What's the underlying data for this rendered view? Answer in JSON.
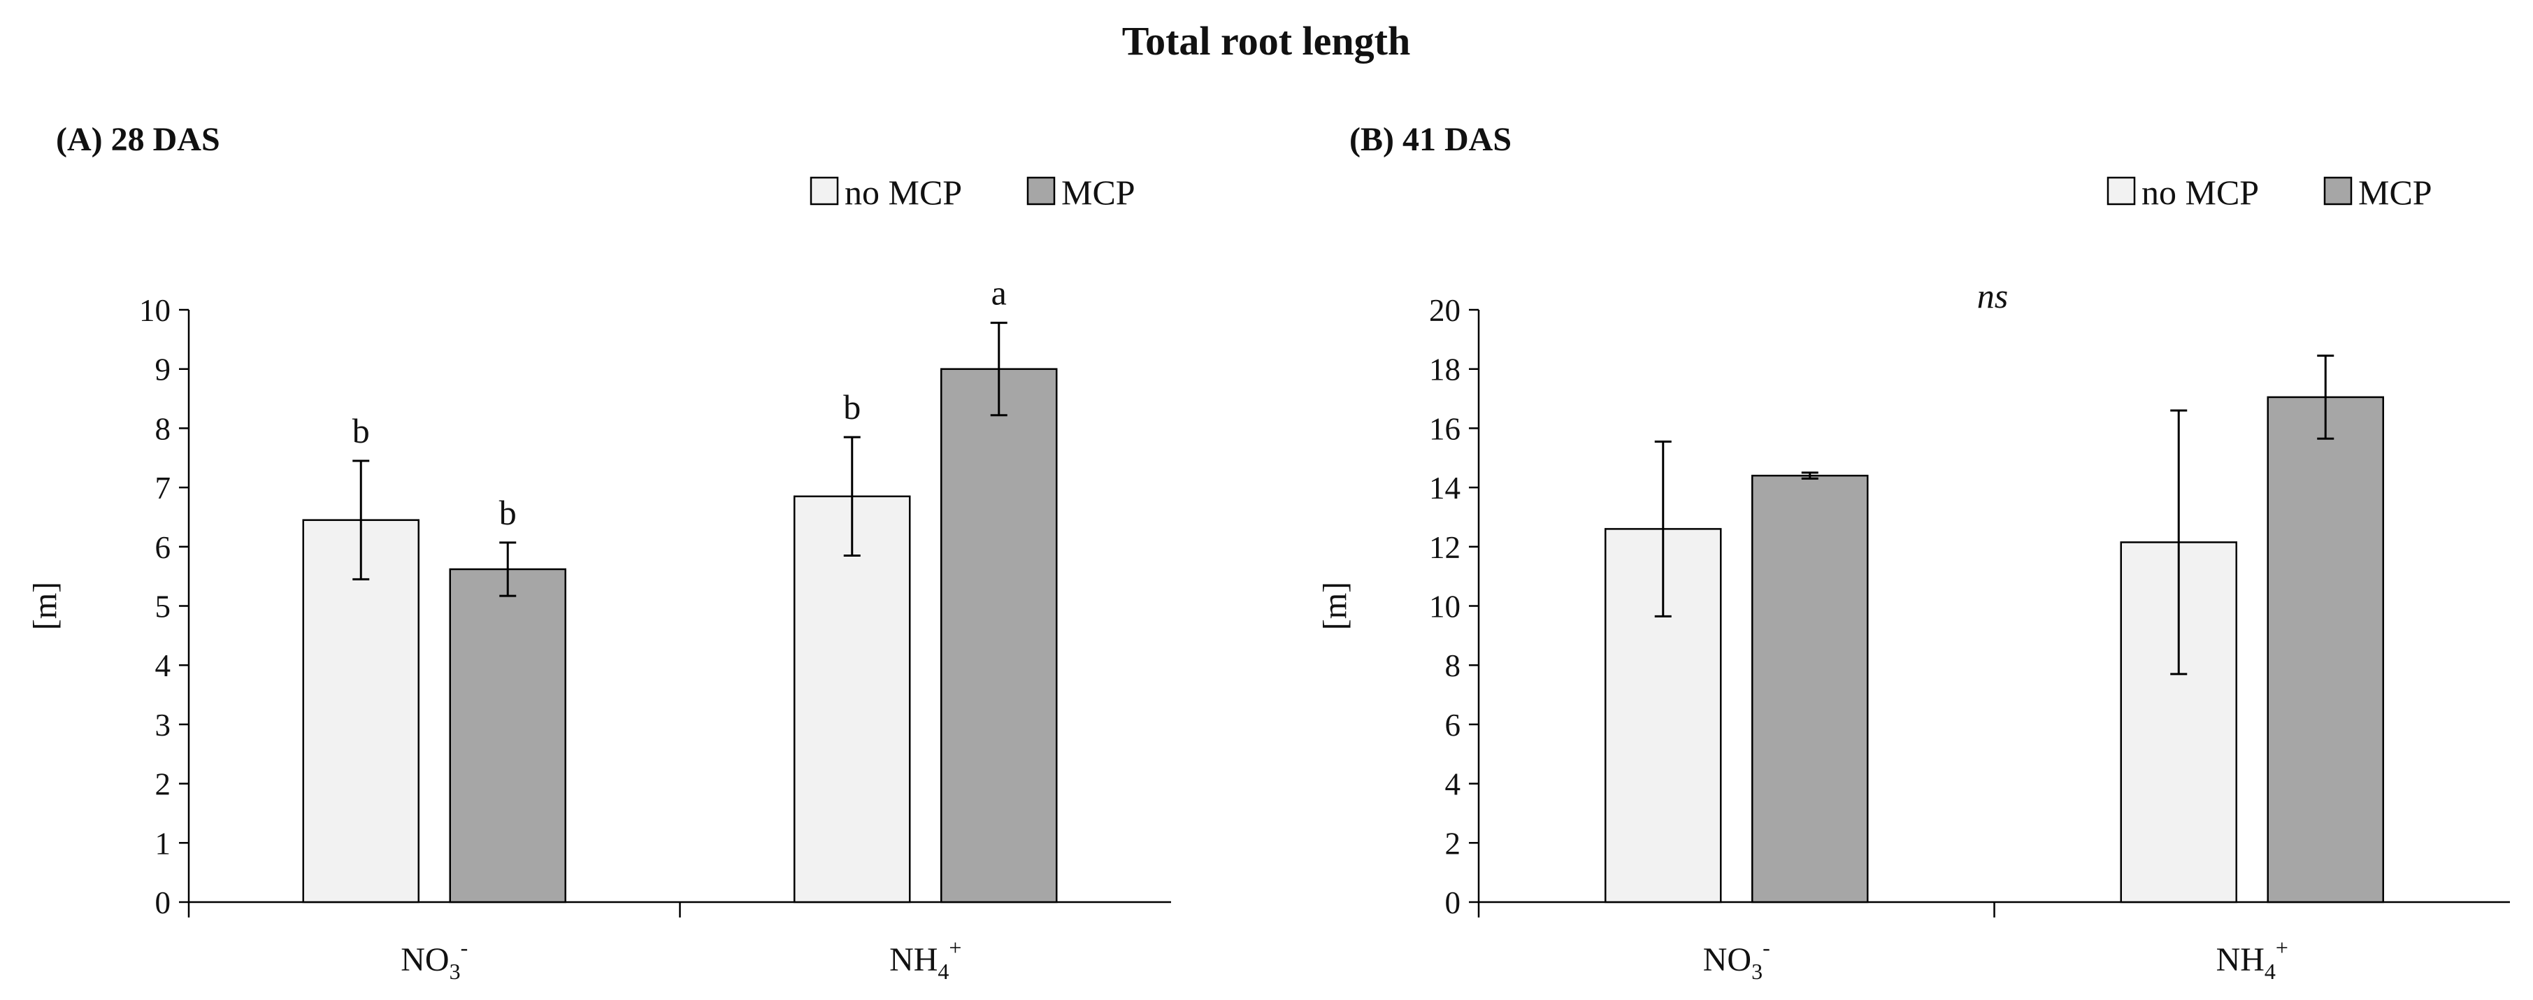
{
  "figure_title": "Total root length",
  "colors": {
    "no_mcp": "#f2f2f2",
    "mcp": "#a6a6a6",
    "stroke": "#000000"
  },
  "chart_data": [
    {
      "type": "bar",
      "panel_label": "(A) 28 DAS",
      "categories": [
        {
          "main": "NO",
          "sub": "3",
          "sup": "-"
        },
        {
          "main": "NH",
          "sub": "4",
          "sup": "+"
        }
      ],
      "series": [
        {
          "name": "no MCP",
          "values": [
            6.45,
            6.85
          ],
          "errors": [
            1.0,
            1.0
          ],
          "letters": [
            "b",
            "b"
          ]
        },
        {
          "name": "MCP",
          "values": [
            5.62,
            9.0
          ],
          "errors": [
            0.45,
            0.78
          ],
          "letters": [
            "b",
            "a"
          ]
        }
      ],
      "ylabel": "[m]",
      "ylim": [
        0,
        10
      ],
      "yticks": [
        "0",
        "1",
        "2",
        "3",
        "4",
        "5",
        "6",
        "7",
        "8",
        "9",
        "10"
      ],
      "annotation": "",
      "legend_position": "top-right",
      "grid": false
    },
    {
      "type": "bar",
      "panel_label": "(B) 41 DAS",
      "categories": [
        {
          "main": "NO",
          "sub": "3",
          "sup": "-"
        },
        {
          "main": "NH",
          "sub": "4",
          "sup": "+"
        }
      ],
      "series": [
        {
          "name": "no MCP",
          "values": [
            12.6,
            12.15
          ],
          "errors": [
            2.95,
            4.45
          ],
          "letters": [
            "",
            ""
          ]
        },
        {
          "name": "MCP",
          "values": [
            14.4,
            17.05
          ],
          "errors": [
            0.1,
            1.4
          ],
          "letters": [
            "",
            ""
          ]
        }
      ],
      "ylabel": "[m]",
      "ylim": [
        0,
        20
      ],
      "yticks": [
        "0",
        "2",
        "4",
        "6",
        "8",
        "10",
        "12",
        "14",
        "16",
        "18",
        "20"
      ],
      "annotation": "ns",
      "legend_position": "top-right",
      "grid": false
    }
  ]
}
